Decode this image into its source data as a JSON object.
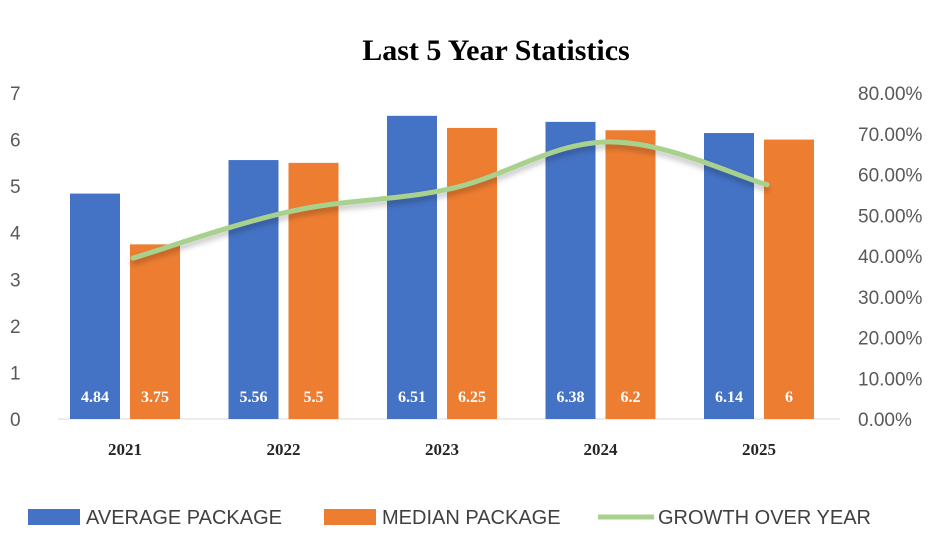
{
  "chart_data": {
    "type": "bar",
    "title": "Last 5 Year Statistics",
    "categories": [
      "2021",
      "2022",
      "2023",
      "2024",
      "2025"
    ],
    "series": [
      {
        "name": "AVERAGE PACKAGE",
        "type": "bar",
        "axis": "left",
        "color": "#4472C4",
        "values": [
          4.84,
          5.56,
          6.51,
          6.38,
          6.14
        ],
        "labels": [
          "4.84",
          "5.56",
          "6.51",
          "6.38",
          "6.14"
        ]
      },
      {
        "name": "MEDIAN PACKAGE",
        "type": "bar",
        "axis": "left",
        "color": "#ED7D31",
        "values": [
          3.75,
          5.5,
          6.25,
          6.2,
          6
        ],
        "labels": [
          "3.75",
          "5.5",
          "6.25",
          "6.2",
          "6"
        ]
      },
      {
        "name": "GROWTH OVER YEAR",
        "type": "line",
        "axis": "right",
        "color": "#A9D18E",
        "values": [
          39.5,
          51,
          56.5,
          68,
          57.5
        ]
      }
    ],
    "y_left": {
      "min": 0,
      "max": 7,
      "ticks": [
        "0",
        "1",
        "2",
        "3",
        "4",
        "5",
        "6",
        "7"
      ]
    },
    "y_right": {
      "min": 0,
      "max": 80,
      "ticks": [
        "0.00%",
        "10.00%",
        "20.00%",
        "30.00%",
        "40.00%",
        "50.00%",
        "60.00%",
        "70.00%",
        "80.00%"
      ]
    },
    "legend": {
      "position": "bottom",
      "items": [
        "AVERAGE PACKAGE",
        "MEDIAN PACKAGE",
        "GROWTH OVER YEAR"
      ]
    },
    "grid": false
  }
}
